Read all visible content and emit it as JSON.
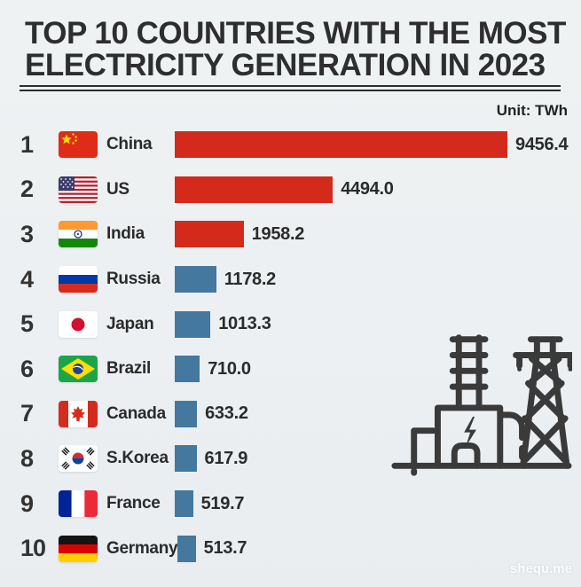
{
  "title": {
    "line1": "TOP 10 COUNTRIES WITH THE MOST",
    "line2": "ELECTRICITY GENERATION IN 2023"
  },
  "unit_label": "Unit: TWh",
  "watermark": "shequ.me",
  "colors": {
    "background": "#edf0f1",
    "red_bar": "#d42a1c",
    "blue_bar": "#44789e",
    "text": "#2d2d2d"
  },
  "chart_data": {
    "type": "bar",
    "orientation": "horizontal",
    "title": "TOP 10 COUNTRIES WITH THE MOST ELECTRICITY GENERATION IN 2023",
    "unit": "TWh",
    "max_value": 9456.4,
    "legend": "none",
    "rows": [
      {
        "rank": "1",
        "country": "China",
        "value": 9456.4,
        "value_label": "9456.4",
        "bar_color": "#d42a1c",
        "flag": "china-flag-icon"
      },
      {
        "rank": "2",
        "country": "US",
        "value": 4494.0,
        "value_label": "4494.0",
        "bar_color": "#d42a1c",
        "flag": "us-flag-icon"
      },
      {
        "rank": "3",
        "country": "India",
        "value": 1958.2,
        "value_label": "1958.2",
        "bar_color": "#d42a1c",
        "flag": "india-flag-icon"
      },
      {
        "rank": "4",
        "country": "Russia",
        "value": 1178.2,
        "value_label": "1178.2",
        "bar_color": "#44789e",
        "flag": "russia-flag-icon"
      },
      {
        "rank": "5",
        "country": "Japan",
        "value": 1013.3,
        "value_label": "1013.3",
        "bar_color": "#44789e",
        "flag": "japan-flag-icon"
      },
      {
        "rank": "6",
        "country": "Brazil",
        "value": 710.0,
        "value_label": "710.0",
        "bar_color": "#44789e",
        "flag": "brazil-flag-icon"
      },
      {
        "rank": "7",
        "country": "Canada",
        "value": 633.2,
        "value_label": "633.2",
        "bar_color": "#44789e",
        "flag": "canada-flag-icon"
      },
      {
        "rank": "8",
        "country": "S.Korea",
        "value": 617.9,
        "value_label": "617.9",
        "bar_color": "#44789e",
        "flag": "skorea-flag-icon"
      },
      {
        "rank": "9",
        "country": "France",
        "value": 519.7,
        "value_label": "519.7",
        "bar_color": "#44789e",
        "flag": "france-flag-icon"
      },
      {
        "rank": "10",
        "country": "Germany",
        "value": 513.7,
        "value_label": "513.7",
        "bar_color": "#44789e",
        "flag": "germany-flag-icon"
      }
    ]
  }
}
